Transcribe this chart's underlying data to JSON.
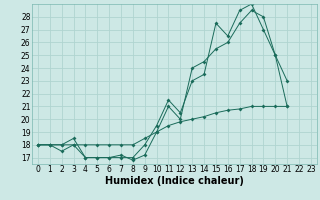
{
  "title": "",
  "xlabel": "Humidex (Indice chaleur)",
  "bg_color": "#cde8e5",
  "grid_color": "#b0d4d0",
  "line_color": "#1a6b5a",
  "line1_y": [
    18,
    18,
    18,
    18.5,
    17,
    17,
    17,
    17.2,
    16.8,
    17.2,
    19,
    21,
    20,
    24,
    24.5,
    25.5,
    26,
    27.5,
    28.5,
    28,
    25,
    23,
    null,
    null
  ],
  "line2_y": [
    18,
    18,
    17.5,
    18,
    17,
    17,
    17,
    17,
    17,
    18,
    19.5,
    21.5,
    20.5,
    23,
    23.5,
    27.5,
    26.5,
    28.5,
    29,
    27,
    25,
    21,
    null,
    null
  ],
  "line3_y": [
    18,
    18,
    18,
    18,
    18,
    18,
    18,
    18,
    18,
    18.5,
    19,
    19.5,
    19.8,
    20,
    20.2,
    20.5,
    20.7,
    20.8,
    21,
    21,
    21,
    21,
    null,
    null
  ],
  "x": [
    0,
    1,
    2,
    3,
    4,
    5,
    6,
    7,
    8,
    9,
    10,
    11,
    12,
    13,
    14,
    15,
    16,
    17,
    18,
    19,
    20,
    21,
    22,
    23
  ],
  "ylim": [
    16.5,
    29.0
  ],
  "xlim": [
    -0.5,
    23.5
  ],
  "yticks": [
    17,
    18,
    19,
    20,
    21,
    22,
    23,
    24,
    25,
    26,
    27,
    28
  ],
  "xticks": [
    0,
    1,
    2,
    3,
    4,
    5,
    6,
    7,
    8,
    9,
    10,
    11,
    12,
    13,
    14,
    15,
    16,
    17,
    18,
    19,
    20,
    21,
    22,
    23
  ],
  "tick_fontsize": 5.5,
  "label_fontsize": 7.0
}
